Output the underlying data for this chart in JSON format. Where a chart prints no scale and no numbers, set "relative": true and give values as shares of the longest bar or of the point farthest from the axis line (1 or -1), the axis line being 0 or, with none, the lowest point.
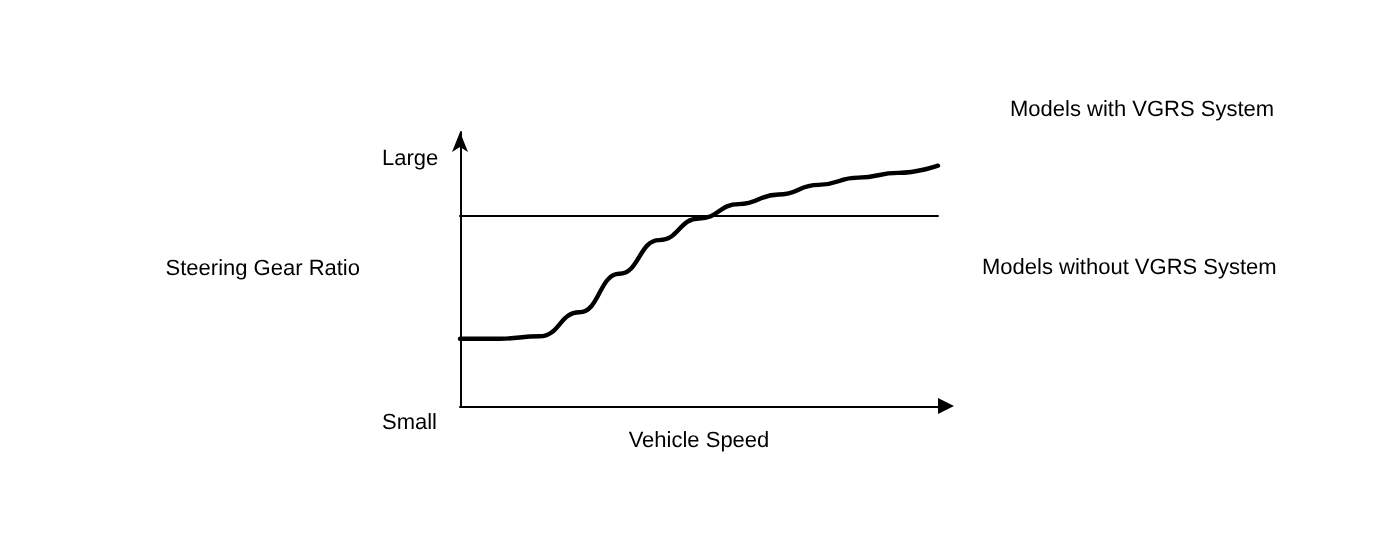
{
  "chart_data": {
    "type": "line",
    "relative": true,
    "xlabel": "Vehicle Speed",
    "ylabel": "Steering Gear Ratio",
    "annotations": [
      "Large",
      "Small"
    ],
    "marker": "none",
    "line_style": "solid",
    "grid": false,
    "legend": false,
    "tick_labels": false,
    "categories": [
      null,
      null,
      null,
      null,
      null,
      null,
      null,
      null,
      null,
      null,
      null,
      null,
      null
    ],
    "series": [
      {
        "name": "Models with VGRS System",
        "color": "#000000",
        "values": [
          0.28,
          0.28,
          0.29,
          0.39,
          0.55,
          0.69,
          0.78,
          0.84,
          0.88,
          0.92,
          0.95,
          0.97,
          1
        ]
      },
      {
        "name": "Models without VGRS System",
        "color": "#000000",
        "values": [
          0.79,
          0.79,
          0.79,
          0.79,
          0.79,
          0.79,
          0.79,
          0.79,
          0.79,
          0.79,
          0.79,
          0.79,
          0.79
        ]
      }
    ]
  }
}
